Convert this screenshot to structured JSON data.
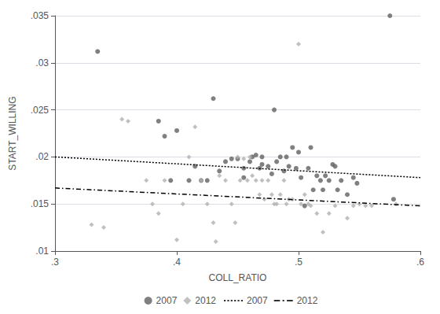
{
  "chart_data": {
    "type": "scatter",
    "xlabel": "COLL_RATIO",
    "ylabel": "START_WILLING",
    "xlim": [
      0.3,
      0.6
    ],
    "ylim": [
      0.01,
      0.035
    ],
    "xticks": [
      {
        "value": 0.3,
        "label": ".3"
      },
      {
        "value": 0.4,
        "label": ".4"
      },
      {
        "value": 0.5,
        "label": ".5"
      },
      {
        "value": 0.6,
        "label": ".6"
      }
    ],
    "yticks": [
      {
        "value": 0.01,
        "label": ".01"
      },
      {
        "value": 0.015,
        "label": ".015"
      },
      {
        "value": 0.02,
        "label": ".02"
      },
      {
        "value": 0.025,
        "label": ".025"
      },
      {
        "value": 0.03,
        "label": ".03"
      },
      {
        "value": 0.035,
        "label": ".035"
      }
    ],
    "grid": true,
    "legend": "bottom",
    "series": [
      {
        "name": "2007",
        "type": "scatter",
        "marker": "circle",
        "color": "#606060",
        "values": [
          [
            0.335,
            0.0312
          ],
          [
            0.385,
            0.0238
          ],
          [
            0.39,
            0.0222
          ],
          [
            0.395,
            0.0175
          ],
          [
            0.4,
            0.0228
          ],
          [
            0.41,
            0.0175
          ],
          [
            0.415,
            0.019
          ],
          [
            0.42,
            0.0175
          ],
          [
            0.425,
            0.0175
          ],
          [
            0.43,
            0.0262
          ],
          [
            0.435,
            0.0185
          ],
          [
            0.44,
            0.0195
          ],
          [
            0.445,
            0.0198
          ],
          [
            0.45,
            0.0198
          ],
          [
            0.455,
            0.0188
          ],
          [
            0.455,
            0.0178
          ],
          [
            0.46,
            0.0195
          ],
          [
            0.462,
            0.02
          ],
          [
            0.465,
            0.0202
          ],
          [
            0.468,
            0.0188
          ],
          [
            0.47,
            0.02
          ],
          [
            0.47,
            0.0192
          ],
          [
            0.475,
            0.019
          ],
          [
            0.478,
            0.0182
          ],
          [
            0.48,
            0.025
          ],
          [
            0.482,
            0.0195
          ],
          [
            0.485,
            0.02
          ],
          [
            0.488,
            0.0185
          ],
          [
            0.49,
            0.02
          ],
          [
            0.492,
            0.019
          ],
          [
            0.495,
            0.021
          ],
          [
            0.498,
            0.0188
          ],
          [
            0.5,
            0.0205
          ],
          [
            0.502,
            0.0178
          ],
          [
            0.505,
            0.0148
          ],
          [
            0.508,
            0.0188
          ],
          [
            0.51,
            0.021
          ],
          [
            0.512,
            0.0165
          ],
          [
            0.515,
            0.018
          ],
          [
            0.518,
            0.0175
          ],
          [
            0.52,
            0.0165
          ],
          [
            0.522,
            0.018
          ],
          [
            0.525,
            0.0175
          ],
          [
            0.528,
            0.0192
          ],
          [
            0.53,
            0.019
          ],
          [
            0.532,
            0.0165
          ],
          [
            0.535,
            0.0175
          ],
          [
            0.54,
            0.016
          ],
          [
            0.545,
            0.0178
          ],
          [
            0.548,
            0.0172
          ],
          [
            0.575,
            0.035
          ],
          [
            0.578,
            0.0155
          ]
        ]
      },
      {
        "name": "2012",
        "type": "scatter",
        "marker": "diamond",
        "color": "#b0b0b0",
        "values": [
          [
            0.33,
            0.0128
          ],
          [
            0.34,
            0.0125
          ],
          [
            0.355,
            0.024
          ],
          [
            0.36,
            0.0238
          ],
          [
            0.375,
            0.0175
          ],
          [
            0.38,
            0.015
          ],
          [
            0.385,
            0.014
          ],
          [
            0.39,
            0.0175
          ],
          [
            0.4,
            0.0112
          ],
          [
            0.405,
            0.015
          ],
          [
            0.41,
            0.02
          ],
          [
            0.415,
            0.0232
          ],
          [
            0.42,
            0.0175
          ],
          [
            0.425,
            0.015
          ],
          [
            0.43,
            0.013
          ],
          [
            0.432,
            0.011
          ],
          [
            0.435,
            0.018
          ],
          [
            0.44,
            0.0175
          ],
          [
            0.445,
            0.015
          ],
          [
            0.448,
            0.013
          ],
          [
            0.45,
            0.02
          ],
          [
            0.452,
            0.0175
          ],
          [
            0.455,
            0.0198
          ],
          [
            0.458,
            0.0175
          ],
          [
            0.46,
            0.02
          ],
          [
            0.462,
            0.018
          ],
          [
            0.465,
            0.0175
          ],
          [
            0.468,
            0.016
          ],
          [
            0.47,
            0.0175
          ],
          [
            0.472,
            0.0155
          ],
          [
            0.475,
            0.0175
          ],
          [
            0.478,
            0.016
          ],
          [
            0.48,
            0.015
          ],
          [
            0.482,
            0.015
          ],
          [
            0.485,
            0.016
          ],
          [
            0.488,
            0.0175
          ],
          [
            0.49,
            0.015
          ],
          [
            0.492,
            0.0155
          ],
          [
            0.495,
            0.0155
          ],
          [
            0.5,
            0.032
          ],
          [
            0.502,
            0.015
          ],
          [
            0.505,
            0.016
          ],
          [
            0.508,
            0.015
          ],
          [
            0.51,
            0.0148
          ],
          [
            0.515,
            0.014
          ],
          [
            0.52,
            0.012
          ],
          [
            0.525,
            0.014
          ],
          [
            0.53,
            0.0148
          ],
          [
            0.54,
            0.0135
          ],
          [
            0.545,
            0.0148
          ],
          [
            0.55,
            0.015
          ],
          [
            0.555,
            0.0148
          ],
          [
            0.56,
            0.0148
          ],
          [
            0.58,
            0.015
          ]
        ]
      },
      {
        "name": "2007",
        "type": "line",
        "line_style": "dotted",
        "color": "#000000",
        "values": [
          [
            0.3,
            0.02
          ],
          [
            0.6,
            0.0178
          ]
        ]
      },
      {
        "name": "2012",
        "type": "line",
        "line_style": "dashdot",
        "color": "#000000",
        "values": [
          [
            0.3,
            0.0167
          ],
          [
            0.6,
            0.0148
          ]
        ]
      }
    ]
  }
}
